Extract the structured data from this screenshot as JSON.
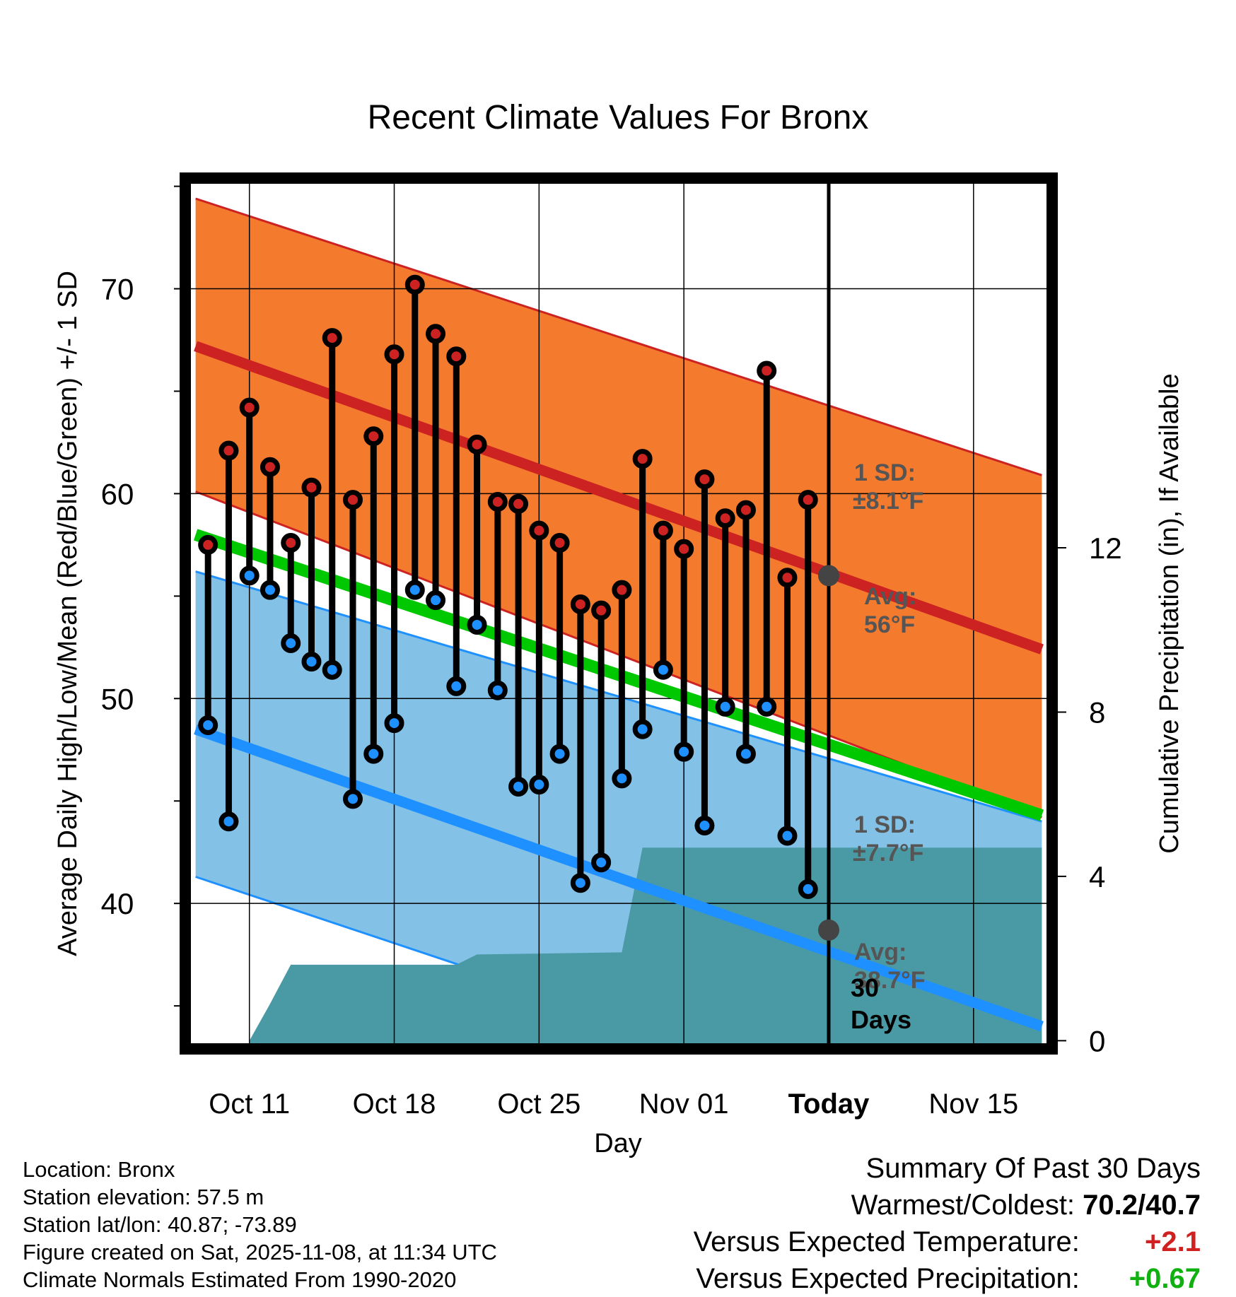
{
  "chart_data": {
    "type": "line",
    "title": "Recent Climate Values For Bronx",
    "xlabel": "Day",
    "ylabel": "Average Daily High/Low/Mean (Red/Blue/Green) +/- 1 SD",
    "y2label": "Cumulative Precipitation (in), If Available",
    "xlim": [
      -3.1,
      38.8
    ],
    "ylim": [
      32.9,
      75.4
    ],
    "y2lim": [
      -0.2,
      21.0
    ],
    "x_ticks": [
      {
        "x": 0,
        "label": "Oct 11"
      },
      {
        "x": 7,
        "label": "Oct 18"
      },
      {
        "x": 14,
        "label": "Oct 25"
      },
      {
        "x": 21,
        "label": "Nov 01"
      },
      {
        "x": 28,
        "label": "Today"
      },
      {
        "x": 35,
        "label": "Nov 15"
      }
    ],
    "y_ticks": [
      40,
      50,
      60,
      70
    ],
    "y2_ticks": [
      0,
      4,
      8,
      12
    ],
    "today_x": 28,
    "normal_high": {
      "start": [
        -2.6,
        67.2
      ],
      "end": [
        38.3,
        52.4
      ]
    },
    "high_sd_band": {
      "upper_start": [
        -2.6,
        74.4
      ],
      "upper_end": [
        38.3,
        60.9
      ],
      "lower_start": [
        -2.6,
        60.1
      ],
      "lower_end": [
        38.3,
        44.2
      ]
    },
    "normal_mean": {
      "start": [
        -2.6,
        58.0
      ],
      "end": [
        38.3,
        44.3
      ]
    },
    "normal_low": {
      "start": [
        -2.6,
        48.5
      ],
      "end": [
        38.3,
        34.0
      ]
    },
    "low_sd_band": {
      "upper_start": [
        -2.6,
        56.2
      ],
      "upper_end": [
        38.3,
        44.0
      ],
      "lower_start": [
        -2.6,
        41.3
      ],
      "lower_end": [
        38.3,
        27.5
      ]
    },
    "series": [
      {
        "name": "Daily High",
        "color": "#cc2222",
        "values": [
          57.5,
          62.1,
          64.2,
          61.3,
          57.6,
          60.3,
          67.6,
          59.7,
          62.8,
          66.8,
          70.2,
          67.8,
          66.7,
          62.4,
          59.6,
          59.5,
          58.2,
          57.6,
          54.6,
          54.3,
          55.3,
          61.7,
          58.2,
          57.3,
          60.7,
          58.8,
          59.2,
          66.0,
          55.9,
          59.7
        ]
      },
      {
        "name": "Daily Low",
        "color": "#1e90ff",
        "values": [
          48.7,
          44.0,
          56.0,
          55.3,
          52.7,
          51.8,
          51.4,
          45.1,
          47.3,
          48.8,
          55.3,
          54.8,
          50.6,
          53.6,
          50.4,
          45.7,
          45.8,
          47.3,
          41.0,
          42.0,
          46.1,
          48.5,
          51.4,
          47.4,
          43.8,
          49.6,
          47.3,
          49.6,
          43.3,
          40.7
        ]
      }
    ],
    "day_x": [
      -2,
      -1,
      0,
      1,
      2,
      3,
      4,
      5,
      6,
      7,
      8,
      9,
      10,
      11,
      12,
      13,
      14,
      15,
      16,
      17,
      18,
      19,
      20,
      21,
      22,
      23,
      24,
      25,
      26,
      27
    ],
    "precipitation": {
      "name": "Cumulative Precipitation",
      "color": "#4a9aa5",
      "points": [
        [
          0,
          0
        ],
        [
          1,
          0.9
        ],
        [
          2,
          1.85
        ],
        [
          10,
          1.85
        ],
        [
          11,
          2.1
        ],
        [
          18,
          2.15
        ],
        [
          19,
          4.7
        ],
        [
          38.3,
          4.7
        ]
      ]
    },
    "annotations": {
      "high_sd_title": "1 SD:",
      "high_sd": "±8.1°F",
      "high_avg_title": "Avg:",
      "high_avg": "56°F",
      "high_avg_value": 56.0,
      "low_sd_title": "1 SD:",
      "low_sd": "±7.7°F",
      "low_avg_title": "Avg:",
      "low_avg": "38.7°F",
      "low_avg_value": 38.7,
      "period_number": "30",
      "period_unit": "Days"
    }
  },
  "info": {
    "location": "Location: Bronx",
    "elevation": "Station elevation: 57.5 m",
    "latlon": "Station lat/lon: 40.87; -73.89",
    "created": "Figure created on Sat, 2025-11-08, at 11:34 UTC",
    "normals": "Climate Normals Estimated From 1990-2020"
  },
  "summary": {
    "title": "Summary Of Past 30 Days",
    "warmest_label": "Warmest/Coldest:",
    "warmest_value": "70.2/40.7",
    "temp_label": "Versus Expected Temperature:",
    "temp_value": "+2.1",
    "temp_color": "#d02020",
    "precip_label": "Versus Expected Precipitation:",
    "precip_value": "+0.67",
    "precip_color": "#10b010"
  },
  "colors": {
    "high_band": "#f47a2e",
    "high_line": "#cc2222",
    "mean_line": "#00c800",
    "low_band": "#84c1e6",
    "low_band_edge": "#1e90ff",
    "low_line": "#1e90ff",
    "precip": "#4a9aa5",
    "annotation": "#555555"
  }
}
